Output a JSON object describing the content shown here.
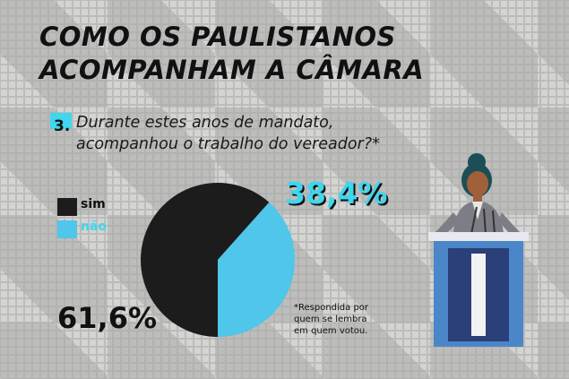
{
  "title": {
    "line1": "COMO OS PAULISTANOS",
    "line2": "ACOMPANHAM A CÂMARA"
  },
  "question": {
    "number": "3.",
    "line1": "Durante estes anos de mandato,",
    "line2": "acompanhou o trabalho do vereador?*"
  },
  "note": [
    "*Respondida por",
    "quem se lembra",
    "em quem votou."
  ],
  "colors": {
    "sim": "#1c1c1c",
    "nao": "#4fc6ea",
    "accent": "#3fd6ee"
  },
  "chart_data": {
    "type": "pie",
    "title": "",
    "slices": [
      {
        "label": "sim",
        "value": 61.6,
        "display": "61,6%"
      },
      {
        "label": "não",
        "value": 38.4,
        "display": "38,4%"
      }
    ],
    "legend_position": "left"
  }
}
